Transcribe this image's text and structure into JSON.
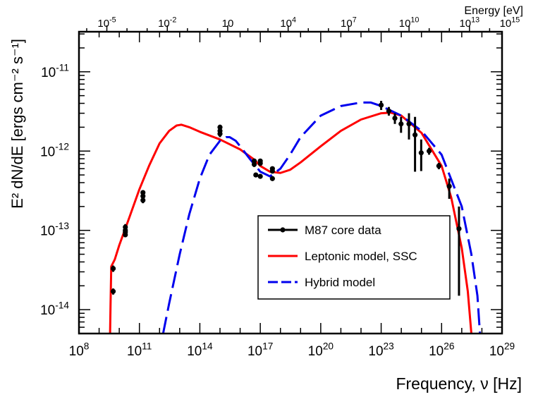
{
  "chart_data": {
    "type": "scatter",
    "title": "",
    "xlabel": "Frequency, ν [Hz]",
    "ylabel": "E² dN/dE [ergs cm⁻² s⁻¹]",
    "xlabel_top": "Energy [eV]",
    "x_scale": "log",
    "y_scale": "log",
    "xlim": [
      100000000.0,
      1e+29
    ],
    "ylim": [
      5e-15,
      3.2e-11
    ],
    "grid": false,
    "legend_position": "lower-right",
    "x_ticks": [
      {
        "mantissa": "10",
        "exp": "8",
        "value": 100000000.0
      },
      {
        "mantissa": "10",
        "exp": "11",
        "value": 100000000000.0
      },
      {
        "mantissa": "10",
        "exp": "14",
        "value": 100000000000000.0
      },
      {
        "mantissa": "10",
        "exp": "17",
        "value": 1e+17
      },
      {
        "mantissa": "10",
        "exp": "20",
        "value": 1e+20
      },
      {
        "mantissa": "10",
        "exp": "23",
        "value": 1e+23
      },
      {
        "mantissa": "10",
        "exp": "26",
        "value": 1e+26
      },
      {
        "mantissa": "10",
        "exp": "29",
        "value": 1e+29
      }
    ],
    "y_ticks": [
      {
        "mantissa": "10",
        "exp": "-11",
        "value": 1e-11
      },
      {
        "mantissa": "10",
        "exp": "-12",
        "value": 1e-12
      },
      {
        "mantissa": "10",
        "exp": "-13",
        "value": 1e-13
      },
      {
        "mantissa": "10",
        "exp": "-14",
        "value": 1e-14
      }
    ],
    "top_ticks": [
      {
        "mantissa": "10",
        "exp": "-5",
        "value": 1e-05
      },
      {
        "mantissa": "10",
        "exp": "-2",
        "value": 0.01
      },
      {
        "mantissa": "10",
        "exp": "",
        "value": 10
      },
      {
        "mantissa": "10",
        "exp": "4",
        "value": 10000.0
      },
      {
        "mantissa": "10",
        "exp": "7",
        "value": 10000000.0
      },
      {
        "mantissa": "10",
        "exp": "10",
        "value": 10000000000.0
      },
      {
        "mantissa": "10",
        "exp": "13",
        "value": 10000000000000.0
      },
      {
        "mantissa": "10",
        "exp": "15",
        "value": 1000000000000000.0
      }
    ],
    "ev_to_hz": 241800000000000.0,
    "colors": {
      "data": "#000000",
      "leptonic": "#ff0000",
      "hybrid": "#0000ee"
    },
    "series": [
      {
        "name": "M87 core data",
        "kind": "points",
        "points": [
          {
            "x": 5000000000.0,
            "y": 3.3e-14,
            "ylo": 3e-14,
            "yhi": 3.6e-14
          },
          {
            "x": 5000000000.0,
            "y": 1.7e-14,
            "ylo": 1.55e-14,
            "yhi": 1.85e-14
          },
          {
            "x": 20000000000.0,
            "y": 1.1e-13,
            "ylo": 1e-13,
            "yhi": 1.2e-13
          },
          {
            "x": 20000000000.0,
            "y": 1e-13,
            "ylo": 9.2e-14,
            "yhi": 1.08e-13
          },
          {
            "x": 20000000000.0,
            "y": 9.5e-14,
            "ylo": 8.8e-14,
            "yhi": 1.02e-13
          },
          {
            "x": 20000000000.0,
            "y": 8.8e-14,
            "ylo": 8.2e-14,
            "yhi": 9.4e-14
          },
          {
            "x": 150000000000.0,
            "y": 3e-13,
            "ylo": 2.8e-13,
            "yhi": 3.2e-13
          },
          {
            "x": 150000000000.0,
            "y": 2.7e-13,
            "ylo": 2.5e-13,
            "yhi": 2.9e-13
          },
          {
            "x": 150000000000.0,
            "y": 2.4e-13,
            "ylo": 2.2e-13,
            "yhi": 2.6e-13
          },
          {
            "x": 1000000000000000.0,
            "y": 2e-12,
            "ylo": 1.85e-12,
            "yhi": 2.15e-12
          },
          {
            "x": 1000000000000000.0,
            "y": 1.8e-12,
            "ylo": 1.65e-12,
            "yhi": 1.95e-12
          },
          {
            "x": 1000000000000000.0,
            "y": 1.65e-12,
            "ylo": 1.5e-12,
            "yhi": 1.8e-12
          },
          {
            "x": 5e+16,
            "y": 7.5e-13,
            "ylo": 7e-13,
            "yhi": 8e-13
          },
          {
            "x": 5e+16,
            "y": 6.8e-13,
            "ylo": 6.3e-13,
            "yhi": 7.3e-13
          },
          {
            "x": 6e+16,
            "y": 5e-13,
            "ylo": 4.7e-13,
            "yhi": 5.3e-13
          },
          {
            "x": 1e+17,
            "y": 7.5e-13,
            "ylo": 7e-13,
            "yhi": 8e-13
          },
          {
            "x": 1e+17,
            "y": 7e-13,
            "ylo": 6.5e-13,
            "yhi": 7.5e-13
          },
          {
            "x": 1e+17,
            "y": 4.8e-13,
            "ylo": 4.5e-13,
            "yhi": 5.1e-13
          },
          {
            "x": 4e+17,
            "y": 6e-13,
            "ylo": 5.6e-13,
            "yhi": 6.4e-13
          },
          {
            "x": 4e+17,
            "y": 5.6e-13,
            "ylo": 5.2e-13,
            "yhi": 6e-13
          },
          {
            "x": 4e+17,
            "y": 4.5e-13,
            "ylo": 4.2e-13,
            "yhi": 4.8e-13
          },
          {
            "x": 1e+23,
            "y": 3.8e-12,
            "ylo": 3.3e-12,
            "yhi": 4.3e-12
          },
          {
            "x": 2.4e+23,
            "y": 3.2e-12,
            "ylo": 2.8e-12,
            "yhi": 3.6e-12
          },
          {
            "x": 4.8e+23,
            "y": 2.6e-12,
            "ylo": 2.2e-12,
            "yhi": 3e-12
          },
          {
            "x": 9.7e+23,
            "y": 2.2e-12,
            "ylo": 1.7e-12,
            "yhi": 2.7e-12
          },
          {
            "x": 2.4e+24,
            "y": 2.2e-12,
            "ylo": 1.4e-12,
            "yhi": 3e-12
          },
          {
            "x": 4.8e+24,
            "y": 1.6e-12,
            "ylo": 5.5e-13,
            "yhi": 2.7e-12
          },
          {
            "x": 9.7e+24,
            "y": 9.5e-13,
            "ylo": 5.6e-13,
            "yhi": 1.4e-12
          },
          {
            "x": 2.4e+25,
            "y": 1e-12,
            "ylo": 9e-13,
            "yhi": 1.1e-12
          },
          {
            "x": 7.3e+25,
            "y": 6.5e-13,
            "ylo": 5.9e-13,
            "yhi": 7.1e-13
          },
          {
            "x": 2.4e+26,
            "y": 3.6e-13,
            "ylo": 2.5e-13,
            "yhi": 4.5e-13
          },
          {
            "x": 7.3e+26,
            "y": 1.05e-13,
            "ylo": 1.5e-14,
            "yhi": 2e-13
          }
        ]
      },
      {
        "name": "Leptonic model, SSC",
        "kind": "line",
        "style": "solid",
        "points": [
          [
            3500000000.0,
            5e-15
          ],
          [
            3700000000.0,
            1.2e-14
          ],
          [
            4000000000.0,
            3.5e-14
          ],
          [
            6000000000.0,
            4.3e-14
          ],
          [
            10000000000.0,
            6.5e-14
          ],
          [
            30000000000.0,
            1.4e-13
          ],
          [
            100000000000.0,
            3.3e-13
          ],
          [
            300000000000.0,
            6.5e-13
          ],
          [
            1000000000000.0,
            1.25e-12
          ],
          [
            3000000000000.0,
            1.8e-12
          ],
          [
            7000000000000.0,
            2.1e-12
          ],
          [
            12000000000000.0,
            2.15e-12
          ],
          [
            30000000000000.0,
            2e-12
          ],
          [
            100000000000000.0,
            1.75e-12
          ],
          [
            1000000000000000.0,
            1.4e-12
          ],
          [
            1e+16,
            1.05e-12
          ],
          [
            5e+16,
            7.8e-13
          ],
          [
            1e+17,
            6.5e-13
          ],
          [
            3e+17,
            5.5e-13
          ],
          [
            1e+18,
            5.3e-13
          ],
          [
            3e+18,
            5.8e-13
          ],
          [
            1e+19,
            7.2e-13
          ],
          [
            1e+20,
            1.15e-12
          ],
          [
            1e+21,
            1.8e-12
          ],
          [
            1e+22,
            2.5e-12
          ],
          [
            1e+23,
            3e-12
          ],
          [
            3e+23,
            3.05e-12
          ],
          [
            1e+24,
            2.8e-12
          ],
          [
            1e+25,
            1.7e-12
          ],
          [
            1e+26,
            6.5e-13
          ],
          [
            3e+26,
            2.6e-13
          ],
          [
            1e+27,
            6e-14
          ],
          [
            2e+27,
            1.7e-14
          ],
          [
            3e+27,
            5e-15
          ]
        ]
      },
      {
        "name": "Hybrid model",
        "kind": "line",
        "style": "dashed",
        "points": [
          [
            1500000000000.0,
            5e-15
          ],
          [
            3000000000000.0,
            1.2e-14
          ],
          [
            10000000000000.0,
            5e-14
          ],
          [
            30000000000000.0,
            1.6e-13
          ],
          [
            100000000000000.0,
            4.5e-13
          ],
          [
            300000000000000.0,
            9e-13
          ],
          [
            1000000000000000.0,
            1.35e-12
          ],
          [
            2000000000000000.0,
            1.5e-12
          ],
          [
            3000000000000000.0,
            1.5e-12
          ],
          [
            6000000000000000.0,
            1.35e-12
          ],
          [
            1e+16,
            1.15e-12
          ],
          [
            3e+16,
            8e-13
          ],
          [
            1e+17,
            5.5e-13
          ],
          [
            3e+17,
            4.8e-13
          ],
          [
            1e+18,
            6e-13
          ],
          [
            3e+18,
            9e-13
          ],
          [
            1e+19,
            1.5e-12
          ],
          [
            1e+20,
            2.8e-12
          ],
          [
            1e+21,
            3.7e-12
          ],
          [
            1e+22,
            4.1e-12
          ],
          [
            3e+22,
            4.1e-12
          ],
          [
            1e+23,
            3.7e-12
          ],
          [
            1e+24,
            2.8e-12
          ],
          [
            1e+25,
            1.8e-12
          ],
          [
            1e+26,
            9e-13
          ],
          [
            1e+27,
            2e-13
          ],
          [
            3e+27,
            5e-14
          ],
          [
            6e+27,
            1.5e-14
          ],
          [
            8e+27,
            5e-15
          ]
        ]
      }
    ]
  }
}
